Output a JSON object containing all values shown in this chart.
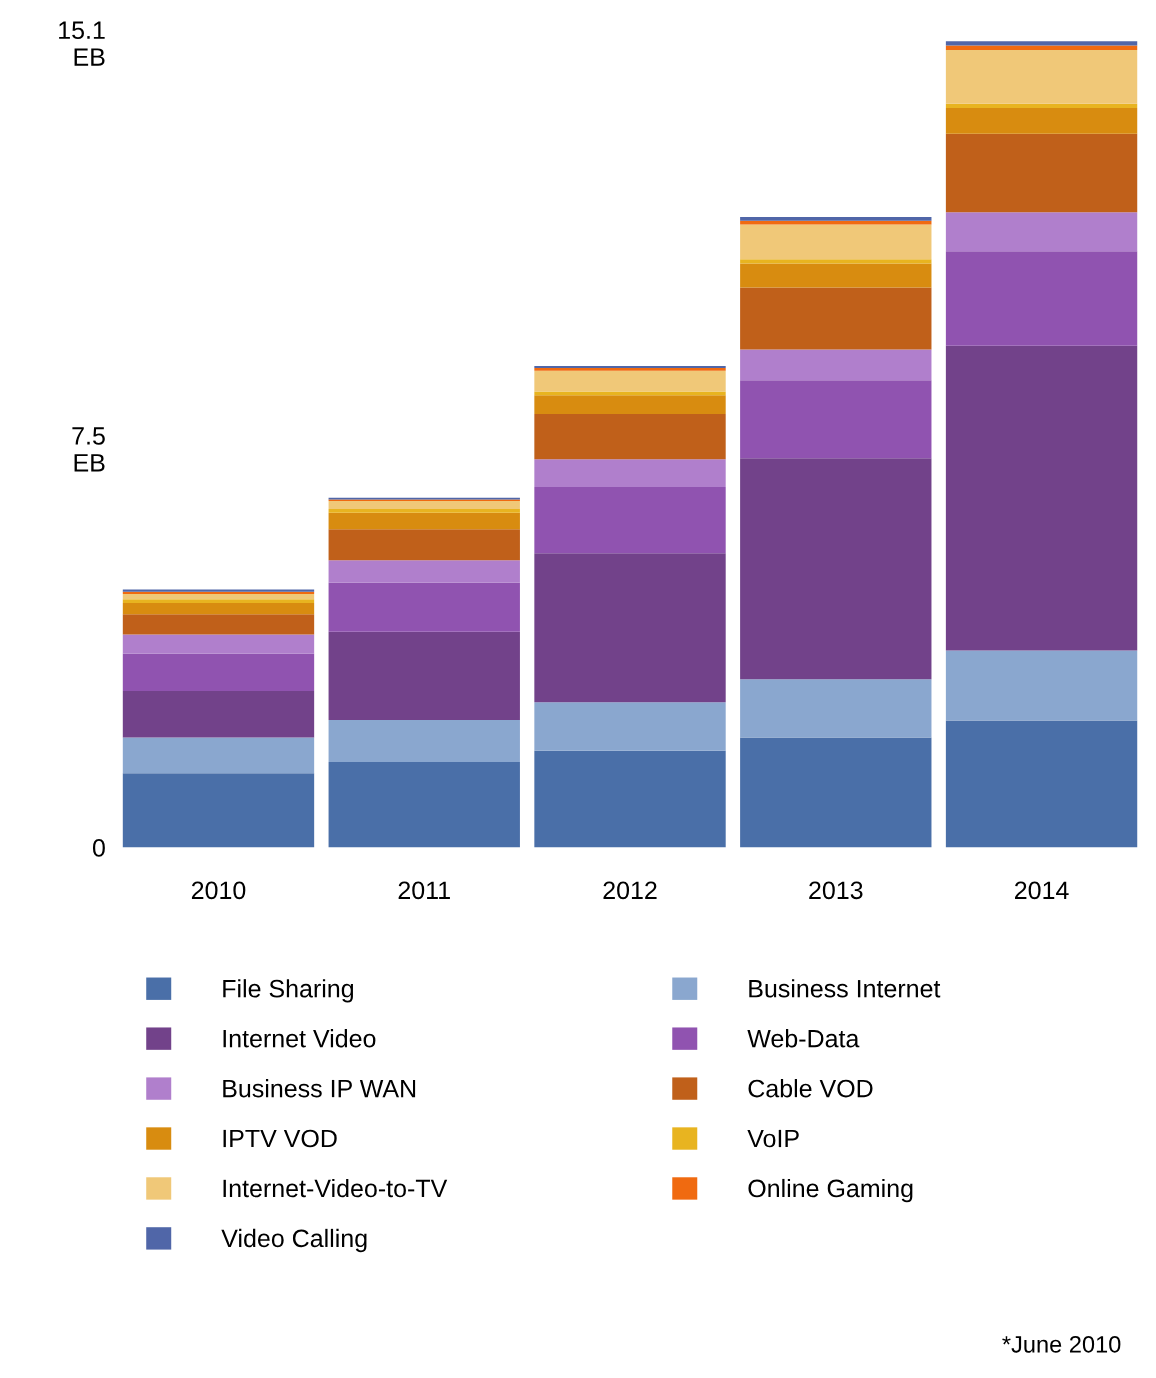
{
  "chart_data": {
    "type": "bar",
    "stacked": true,
    "categories": [
      "2010",
      "2011",
      "2012",
      "2013",
      "2014"
    ],
    "series": [
      {
        "name": "File Sharing",
        "color": "#4a6fa8",
        "values": [
          1.39,
          1.6,
          1.81,
          2.06,
          2.38
        ]
      },
      {
        "name": "Business Internet",
        "color": "#8aa7cf",
        "values": [
          0.67,
          0.79,
          0.91,
          1.09,
          1.31
        ]
      },
      {
        "name": "Internet Video",
        "color": "#72428a",
        "values": [
          0.87,
          1.65,
          2.79,
          4.14,
          5.71
        ]
      },
      {
        "name": "Web-Data",
        "color": "#9053b0",
        "values": [
          0.7,
          0.92,
          1.24,
          1.46,
          1.77
        ]
      },
      {
        "name": "Business IP WAN",
        "color": "#b07fcc",
        "values": [
          0.36,
          0.42,
          0.52,
          0.58,
          0.73
        ]
      },
      {
        "name": "Cable VOD",
        "color": "#c0601a",
        "values": [
          0.38,
          0.58,
          0.85,
          1.16,
          1.47
        ]
      },
      {
        "name": "IPTV VOD",
        "color": "#d88c10",
        "values": [
          0.21,
          0.31,
          0.35,
          0.45,
          0.48
        ]
      },
      {
        "name": "VoIP",
        "color": "#e8b420",
        "values": [
          0.07,
          0.07,
          0.07,
          0.08,
          0.08
        ]
      },
      {
        "name": "Internet-Video-to-TV",
        "color": "#f0c878",
        "values": [
          0.1,
          0.15,
          0.39,
          0.65,
          1.01
        ]
      },
      {
        "name": "Online Gaming",
        "color": "#f06a10",
        "values": [
          0.04,
          0.03,
          0.05,
          0.07,
          0.08
        ]
      },
      {
        "name": "Video Calling",
        "color": "#5066a8",
        "values": [
          0.04,
          0.03,
          0.04,
          0.07,
          0.09
        ]
      }
    ],
    "ylim": [
      0,
      15.1
    ],
    "yticks": [
      0,
      {
        "value": 7.5,
        "label": "7.5\nEB"
      },
      {
        "value": 15.1,
        "label": "15.1\nEB"
      }
    ],
    "grid": false,
    "legend": "bottom",
    "annotations": [
      "*June 2010"
    ]
  }
}
